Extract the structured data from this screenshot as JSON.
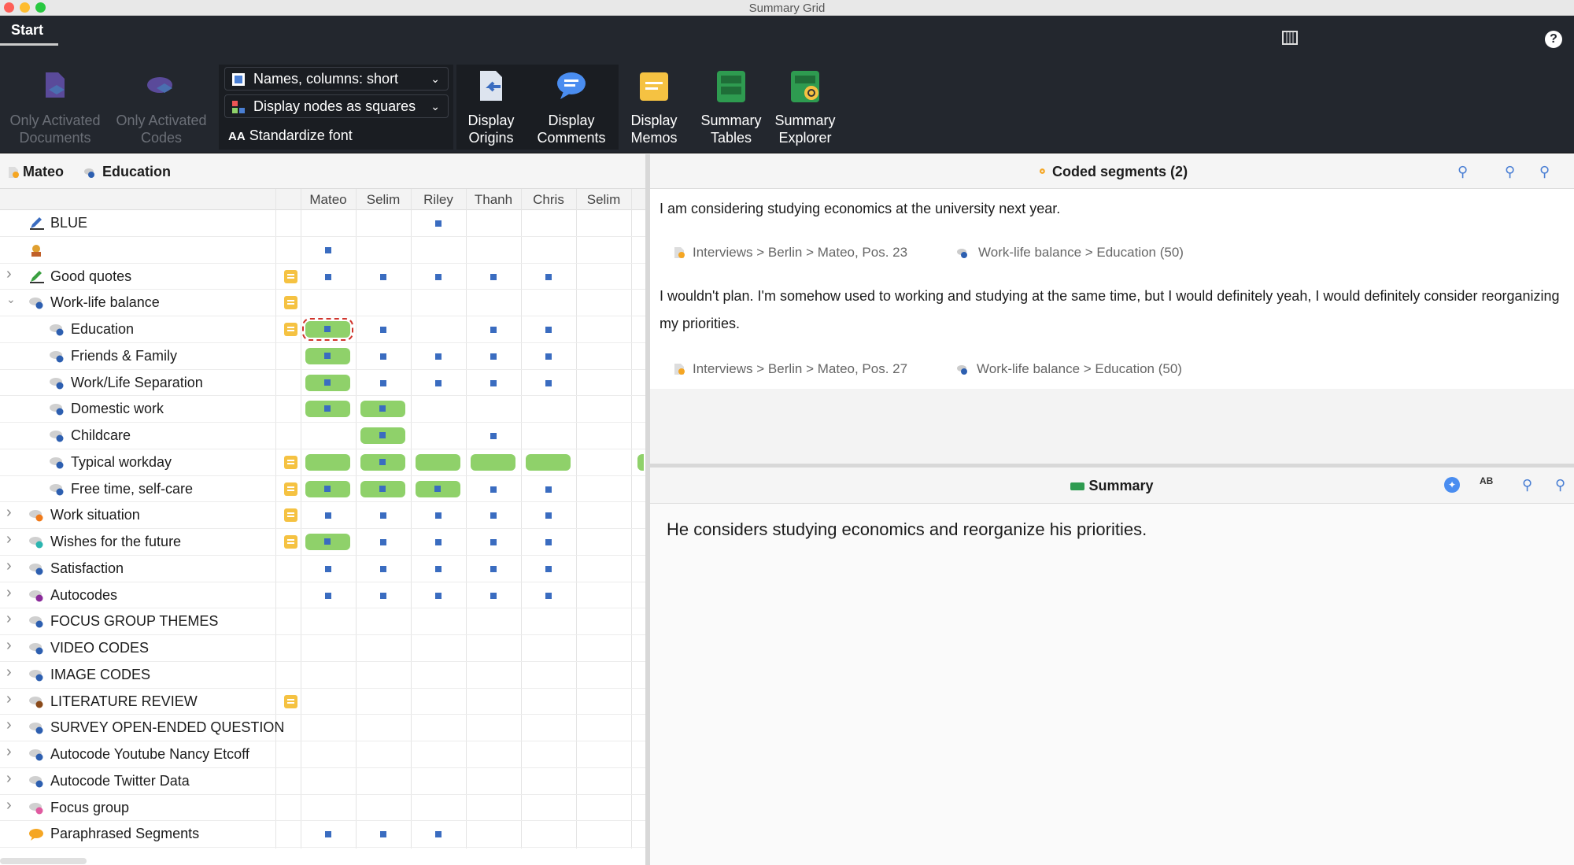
{
  "window": {
    "title": "Summary Grid"
  },
  "tabs": {
    "start": "Start"
  },
  "ribbon": {
    "only_activated_documents": "Only Activated Documents",
    "only_activated_codes": "Only Activated Codes",
    "names_columns": "Names, columns: short",
    "display_nodes": "Display nodes as squares",
    "standardize_font": "Standardize font",
    "display_origins": "Display Origins",
    "display_comments": "Display Comments",
    "display_memos": "Display Memos",
    "summary_tables": "Summary Tables",
    "summary_explorer": "Summary Explorer",
    "icons": [
      "document-filter-icon",
      "code-filter-icon",
      "document-origin-icon",
      "comment-bubble-icon",
      "memo-icon",
      "summary-tables-icon",
      "summary-explorer-icon"
    ]
  },
  "left_header": {
    "document": "Mateo",
    "code": "Education"
  },
  "columns": [
    "Mateo",
    "Selim",
    "Riley",
    "Thanh",
    "Chris",
    "Selim"
  ],
  "rows": [
    {
      "label": "BLUE",
      "expandable": false,
      "icon": "pencil-icon",
      "memo": false,
      "cells": [
        "",
        "",
        "sq",
        "",
        "",
        ""
      ]
    },
    {
      "label": "",
      "expandable": false,
      "icon": "person-icon",
      "memo": false,
      "cells": [
        "sq",
        "",
        "",
        "",
        "",
        ""
      ]
    },
    {
      "label": "Good quotes",
      "expandable": true,
      "icon": "pencil-icon",
      "memo": true,
      "cells": [
        "sq",
        "sq",
        "sq",
        "sq",
        "sq",
        ""
      ]
    },
    {
      "label": "Work-life balance",
      "expandable": true,
      "expanded": true,
      "icon": "code-icon",
      "memo": true,
      "cells": [
        "",
        "",
        "",
        "",
        "",
        ""
      ]
    },
    {
      "label": "Education",
      "child": true,
      "icon": "code-icon",
      "memo": true,
      "cells": [
        "pill-sel",
        "sq",
        "",
        "sq",
        "sq",
        ""
      ]
    },
    {
      "label": "Friends & Family",
      "child": true,
      "icon": "code-icon",
      "memo": false,
      "cells": [
        "pill",
        "sq",
        "sq",
        "sq",
        "sq",
        ""
      ]
    },
    {
      "label": "Work/Life Separation",
      "child": true,
      "icon": "code-icon",
      "memo": false,
      "cells": [
        "pill",
        "sq",
        "sq",
        "sq",
        "sq",
        ""
      ]
    },
    {
      "label": "Domestic work",
      "child": true,
      "icon": "code-icon",
      "memo": false,
      "cells": [
        "pill",
        "pill",
        "",
        "",
        "",
        ""
      ]
    },
    {
      "label": "Childcare",
      "child": true,
      "icon": "code-icon",
      "memo": false,
      "cells": [
        "",
        "pill",
        "",
        "sq",
        "",
        ""
      ]
    },
    {
      "label": "Typical workday",
      "child": true,
      "icon": "code-icon",
      "memo": true,
      "cells": [
        "pillx",
        "pill",
        "pillx",
        "pillx",
        "pillx",
        ""
      ]
    },
    {
      "label": "Free time, self-care",
      "child": true,
      "icon": "code-icon",
      "memo": true,
      "cells": [
        "pill",
        "pill",
        "pill",
        "sq",
        "sq",
        ""
      ]
    },
    {
      "label": "Work situation",
      "expandable": true,
      "icon": "code-icon-orange",
      "memo": true,
      "cells": [
        "sq",
        "sq",
        "sq",
        "sq",
        "sq",
        ""
      ]
    },
    {
      "label": "Wishes for the future",
      "expandable": true,
      "icon": "code-icon-teal",
      "memo": true,
      "cells": [
        "pill",
        "sq",
        "sq",
        "sq",
        "sq",
        ""
      ]
    },
    {
      "label": "Satisfaction",
      "expandable": true,
      "icon": "code-icon",
      "memo": false,
      "cells": [
        "sq",
        "sq",
        "sq",
        "sq",
        "sq",
        ""
      ]
    },
    {
      "label": "Autocodes",
      "expandable": true,
      "icon": "code-icon-purple",
      "memo": false,
      "cells": [
        "sq",
        "sq",
        "sq",
        "sq",
        "sq",
        ""
      ]
    },
    {
      "label": "FOCUS GROUP THEMES",
      "expandable": true,
      "icon": "code-icon",
      "memo": false,
      "cells": [
        "",
        "",
        "",
        "",
        "",
        ""
      ]
    },
    {
      "label": "VIDEO CODES",
      "expandable": true,
      "icon": "code-icon",
      "memo": false,
      "cells": [
        "",
        "",
        "",
        "",
        "",
        ""
      ]
    },
    {
      "label": "IMAGE CODES",
      "expandable": true,
      "icon": "code-icon",
      "memo": false,
      "cells": [
        "",
        "",
        "",
        "",
        "",
        ""
      ]
    },
    {
      "label": "LITERATURE REVIEW",
      "expandable": true,
      "icon": "code-icon-brown",
      "memo": true,
      "cells": [
        "",
        "",
        "",
        "",
        "",
        ""
      ]
    },
    {
      "label": "SURVEY OPEN-ENDED QUESTION",
      "expandable": true,
      "icon": "code-icon",
      "memo": false,
      "cells": [
        "",
        "",
        "",
        "",
        "",
        ""
      ]
    },
    {
      "label": "Autocode Youtube Nancy Etcoff",
      "expandable": true,
      "icon": "code-icon",
      "memo": false,
      "cells": [
        "",
        "",
        "",
        "",
        "",
        ""
      ]
    },
    {
      "label": "Autocode Twitter Data",
      "expandable": true,
      "icon": "code-icon",
      "memo": false,
      "cells": [
        "",
        "",
        "",
        "",
        "",
        ""
      ]
    },
    {
      "label": "Focus group",
      "expandable": true,
      "icon": "code-icon-pink",
      "memo": false,
      "cells": [
        "",
        "",
        "",
        "",
        "",
        ""
      ]
    },
    {
      "label": "Paraphrased Segments",
      "expandable": false,
      "icon": "speech-bubble-icon",
      "memo": false,
      "cells": [
        "sq",
        "sq",
        "sq",
        "",
        "",
        ""
      ]
    }
  ],
  "right": {
    "coded_title": "Coded segments (2)",
    "segments": [
      {
        "text": "I am considering studying economics at the university next year.",
        "source": "Interviews > Berlin > Mateo, Pos. 23",
        "code": "Work-life balance > Education (50)"
      },
      {
        "text": "I wouldn't plan. I'm somehow used to working and studying at the same time, but I would definitely yeah, I would definitely consider reorganizing my priorities.",
        "source": "Interviews > Berlin > Mateo, Pos. 27",
        "code": "Work-life balance > Education (50)"
      }
    ],
    "summary_title": "Summary",
    "summary_text": "He considers studying economics and reorganize his priorities."
  },
  "colors": {
    "pill": "#8fd16a",
    "square": "#3a6cc0",
    "memo": "#f5c242",
    "ribbon": "#23272e"
  }
}
